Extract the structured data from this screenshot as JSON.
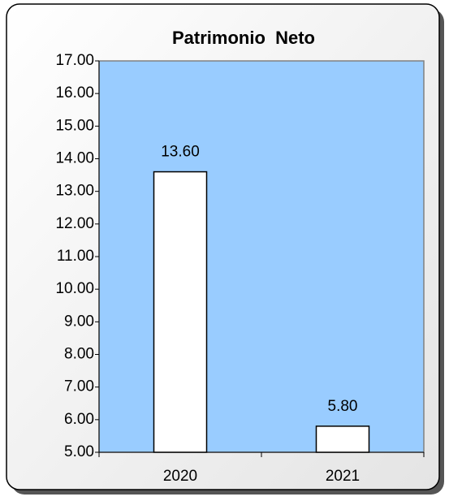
{
  "chart_data": {
    "type": "bar",
    "title": "Patrimonio  Neto",
    "categories": [
      "2020",
      "2021"
    ],
    "values": [
      13.6,
      5.8
    ],
    "value_labels": [
      "13.60",
      "5.80"
    ],
    "color": "#ffffff",
    "plot_background": "#99ccff",
    "ylim": [
      5,
      17
    ],
    "yticks": [
      {
        "value": 5,
        "label": "5.00"
      },
      {
        "value": 6,
        "label": "6.00"
      },
      {
        "value": 7,
        "label": "7.00"
      },
      {
        "value": 8,
        "label": "8.00"
      },
      {
        "value": 9,
        "label": "9.00"
      },
      {
        "value": 10,
        "label": "10.00"
      },
      {
        "value": 11,
        "label": "11.00"
      },
      {
        "value": 12,
        "label": "12.00"
      },
      {
        "value": 13,
        "label": "13.00"
      },
      {
        "value": 14,
        "label": "14.00"
      },
      {
        "value": 15,
        "label": "15.00"
      },
      {
        "value": 16,
        "label": "16.00"
      },
      {
        "value": 17,
        "label": "17.00"
      }
    ],
    "grid": false
  }
}
